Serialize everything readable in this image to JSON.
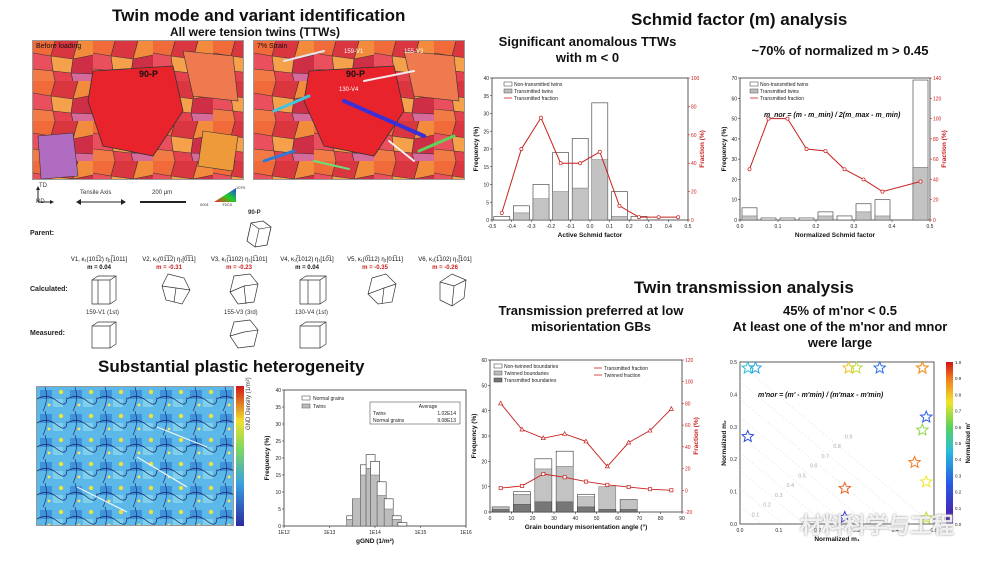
{
  "twin_panel": {
    "title": "Twin mode and variant identification",
    "subtitle": "All were tension twins (TTWs)",
    "map_before_label": "Before loading",
    "map_after_label": "7% Strain",
    "grain_label": "90-P",
    "after_variant_labels": [
      "159-V1",
      "155-V3",
      "130-V4"
    ],
    "axis_td": "TD",
    "axis_rd": "RD",
    "tensile_axis": "Tensile Axis",
    "scale_bar": "200 μm",
    "ipf_labels": [
      "0001",
      "10Ŷ0",
      "Ŷ0Č0"
    ],
    "parent_label": "Parent:",
    "parent_grain": "90-P",
    "calculated_label": "Calculated:",
    "measured_label": "Measured:",
    "variants": [
      {
        "name": "V1, κ₁(101̅2) η₁[̅1011]",
        "m": "m = 0.04",
        "negative": false
      },
      {
        "name": "V2, κ₁(01̅1̅2) η₁[0̅1̅1]",
        "m": "m = -0.31",
        "negative": true
      },
      {
        "name": "V3, κ₁(̅1102) η₁[1̅101]",
        "m": "m = -0.23",
        "negative": true
      },
      {
        "name": "V4, κ₁(̅1012) η₁[10̅1]",
        "m": "m = 0.04",
        "negative": false
      },
      {
        "name": "V5, κ₁(0̅112) η₁[01̅11]",
        "m": "m = -0.35",
        "negative": true
      },
      {
        "name": "V6, κ₁(1̅102) η₁[̅101]",
        "m": "m = -0.26",
        "negative": true
      }
    ],
    "measured_variants": [
      "159-V1 (1st)",
      "155-V3 (3rd)",
      "130-V4 (1st)"
    ]
  },
  "schmid_panel": {
    "title": "Schmid factor (m) analysis",
    "left_title": "Significant anomalous TTWs with m < 0",
    "right_title": "~70% of normalized m > 0.45",
    "formula": "m_nor = (m - m_min) / 2(m_max - m_min)"
  },
  "heterogeneity_panel": {
    "title": "Substantial plastic heterogeneity",
    "gnd_label": "GND Density (1/m²)"
  },
  "transmission_panel": {
    "title": "Twin transmission analysis",
    "left_title": "Transmission preferred at low misorientation GBs",
    "right_title_1": "45% of m'nor < 0.5",
    "right_title_2": "At least one of the m'nor and mnor were large",
    "formula": "m'nor = (m' - m'min) / (m'max - m'min)"
  },
  "watermark": "材料科学与工程",
  "colors": {
    "red": "#c8201e",
    "gray_bar": "#bdbdbd",
    "outline": "#333333"
  },
  "chart_data": [
    {
      "type": "bar",
      "id": "schmid-factor",
      "title": "",
      "xlabel": "Active Schmid factor",
      "ylabel": "Frequency (%)",
      "y2label": "Fraction (%)",
      "xlim": [
        -0.5,
        0.5
      ],
      "ylim": [
        0,
        40
      ],
      "y2lim": [
        0,
        100
      ],
      "xticks": [
        "-0.5",
        "-0.4",
        "-0.3",
        "-0.2",
        "-0.1",
        "0.0",
        "0.1",
        "0.2",
        "0.3",
        "0.4",
        "0.5"
      ],
      "yticks": [
        "0",
        "5",
        "10",
        "15",
        "20",
        "25",
        "30",
        "35",
        "40"
      ],
      "y2ticks": [
        "0",
        "20",
        "40",
        "60",
        "80",
        "100"
      ],
      "legend": [
        "Non-transmitted twins",
        "Transmitted twins",
        "Transmitted fraction"
      ],
      "x": [
        -0.45,
        -0.35,
        -0.25,
        -0.15,
        -0.05,
        0.05,
        0.15,
        0.25,
        0.35,
        0.45
      ],
      "series": [
        {
          "name": "Non-transmitted twins",
          "values": [
            1,
            4,
            10,
            19,
            23,
            33,
            8,
            1,
            0,
            0
          ]
        },
        {
          "name": "Transmitted twins",
          "values": [
            0,
            2,
            6,
            8,
            9,
            17,
            1,
            0,
            0,
            0
          ]
        },
        {
          "name": "Transmitted fraction",
          "values": [
            5,
            50,
            72,
            40,
            40,
            48,
            10,
            2,
            2,
            2
          ]
        }
      ]
    },
    {
      "type": "bar",
      "id": "normalized-schmid",
      "xlabel": "Normalized Schmid factor",
      "ylabel": "Frequency (%)",
      "y2label": "Fraction (%)",
      "xlim": [
        0,
        0.5
      ],
      "ylim": [
        0,
        70
      ],
      "y2lim": [
        0,
        140
      ],
      "xticks": [
        "0.0",
        "0.1",
        "0.2",
        "0.3",
        "0.4",
        "0.5"
      ],
      "yticks": [
        "0",
        "10",
        "20",
        "30",
        "40",
        "50",
        "60",
        "70"
      ],
      "y2ticks": [
        "0",
        "20",
        "40",
        "60",
        "80",
        "100",
        "120",
        "140"
      ],
      "legend": [
        "Non-transmitted twins",
        "Transmitted twins",
        "Transmitted fraction"
      ],
      "x": [
        0.025,
        0.075,
        0.125,
        0.175,
        0.225,
        0.275,
        0.325,
        0.375,
        0.475
      ],
      "series": [
        {
          "name": "Non-transmitted twins",
          "values": [
            6,
            1,
            1,
            1,
            4,
            2,
            8,
            10,
            69
          ]
        },
        {
          "name": "Transmitted twins",
          "values": [
            2,
            0,
            0,
            0,
            2,
            0,
            4,
            2,
            26
          ]
        },
        {
          "name": "Transmitted fraction",
          "values": [
            50,
            100,
            100,
            70,
            68,
            50,
            40,
            28,
            38
          ]
        }
      ]
    },
    {
      "type": "bar",
      "id": "gnd-histogram",
      "xlabel": "gGND (1/m²)",
      "ylabel": "Frequency (%)",
      "xticks": [
        "1E12",
        "1E13",
        "1E14",
        "1E15",
        "1E16"
      ],
      "yticks": [
        "0",
        "5",
        "10",
        "15",
        "20",
        "25",
        "30",
        "35",
        "40"
      ],
      "ylim": [
        0,
        40
      ],
      "legend": [
        "Normal grains",
        "Twins"
      ],
      "table_header": "Average",
      "table_rows": [
        [
          "Twins",
          "1.02E14"
        ],
        [
          "Normal grains",
          "9.08E13"
        ]
      ],
      "x": [
        "3E13",
        "4E13",
        "6E13",
        "8E13",
        "1E14",
        "1.4E14",
        "2E14",
        "3E14",
        "4E14"
      ],
      "series": [
        {
          "name": "Normal grains",
          "values": [
            3,
            8,
            18,
            21,
            19,
            13,
            8,
            3,
            1
          ]
        },
        {
          "name": "Twins",
          "values": [
            2,
            8,
            15,
            17,
            15,
            9,
            5,
            2,
            0
          ]
        }
      ]
    },
    {
      "type": "bar",
      "id": "misorientation",
      "xlabel": "Grain boundary misorientation angle (°)",
      "ylabel": "Frequency (%)",
      "y2label": "Fraction (%)",
      "xlim": [
        0,
        90
      ],
      "ylim": [
        0,
        60
      ],
      "y2lim": [
        -20,
        120
      ],
      "xticks": [
        "0",
        "10",
        "20",
        "30",
        "40",
        "50",
        "60",
        "70",
        "80",
        "90"
      ],
      "yticks": [
        "0",
        "10",
        "20",
        "30",
        "40",
        "50",
        "60"
      ],
      "y2ticks": [
        "-20",
        "0",
        "20",
        "40",
        "60",
        "80",
        "100",
        "120"
      ],
      "legend": [
        "Non-twinned boundaries",
        "Twinned boundaries",
        "Transmitted boundaries",
        "Transmitted fraction",
        "Twinned fraction"
      ],
      "x": [
        5,
        15,
        25,
        35,
        45,
        55,
        65,
        75,
        85
      ],
      "series": [
        {
          "name": "Non-twinned boundaries",
          "values": [
            2,
            8,
            21,
            24,
            7,
            1,
            5,
            0,
            0
          ]
        },
        {
          "name": "Twinned boundaries",
          "values": [
            2,
            7,
            17,
            18,
            6,
            10,
            5,
            0,
            0
          ]
        },
        {
          "name": "Transmitted boundaries",
          "values": [
            1,
            3,
            4,
            4,
            2,
            1,
            1,
            0,
            0
          ]
        },
        {
          "name": "Transmitted fraction",
          "values": [
            2,
            4,
            15,
            12,
            8,
            5,
            3,
            1,
            0
          ]
        },
        {
          "name": "Twinned fraction",
          "values": [
            80,
            56,
            48,
            52,
            45,
            22,
            44,
            55,
            75
          ]
        }
      ]
    },
    {
      "type": "scatter",
      "id": "m-nor-scatter",
      "xlabel": "Normalized m₁",
      "ylabel": "Normalized m₂",
      "colorbar_label": "Normalized m'",
      "xlim": [
        0,
        0.5
      ],
      "ylim": [
        0,
        0.5
      ],
      "xticks": [
        "0.0",
        "0.1",
        "0.2",
        "0.3",
        "0.4",
        "0.5"
      ],
      "yticks": [
        "0.0",
        "0.1",
        "0.2",
        "0.3",
        "0.4",
        "0.5"
      ],
      "cbar_ticks": [
        "0.0",
        "0.1",
        "0.2",
        "0.3",
        "0.4",
        "0.5",
        "0.6",
        "0.7",
        "0.8",
        "0.9",
        "1.0"
      ],
      "contour_labels": [
        "0.1",
        "0.2",
        "0.3",
        "0.4",
        "0.5",
        "0.6",
        "0.7",
        "0.8",
        "0.9"
      ],
      "points": [
        {
          "x": 0.02,
          "y": 0.5,
          "v": 0.45
        },
        {
          "x": 0.04,
          "y": 0.5,
          "v": 0.4
        },
        {
          "x": 0.28,
          "y": 0.5,
          "v": 0.8
        },
        {
          "x": 0.3,
          "y": 0.49,
          "v": 0.7
        },
        {
          "x": 0.36,
          "y": 0.5,
          "v": 0.3
        },
        {
          "x": 0.47,
          "y": 0.5,
          "v": 0.95
        },
        {
          "x": 0.47,
          "y": 0.5,
          "v": 0.85
        },
        {
          "x": 0.48,
          "y": 0.33,
          "v": 0.25
        },
        {
          "x": 0.47,
          "y": 0.29,
          "v": 0.65
        },
        {
          "x": 0.45,
          "y": 0.19,
          "v": 0.9
        },
        {
          "x": 0.48,
          "y": 0.13,
          "v": 0.75
        },
        {
          "x": 0.02,
          "y": 0.27,
          "v": 0.2
        },
        {
          "x": 0.27,
          "y": 0.11,
          "v": 0.92
        },
        {
          "x": 0.27,
          "y": 0.02,
          "v": 0.15
        },
        {
          "x": 0.48,
          "y": 0.01,
          "v": 0.7
        }
      ]
    }
  ]
}
